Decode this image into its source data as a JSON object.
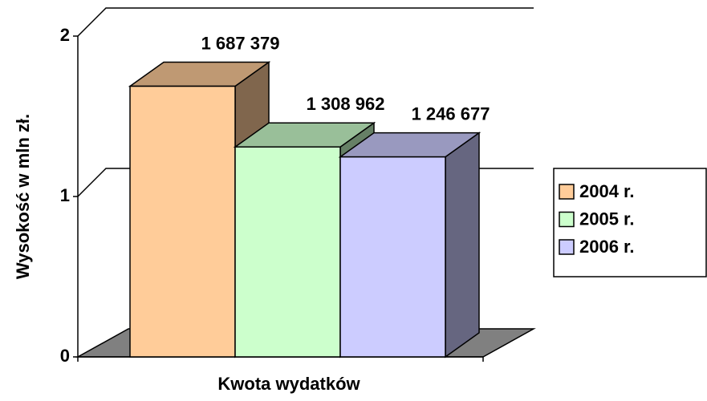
{
  "chart_data": {
    "type": "bar3d",
    "y_label": "Wysokość w mln zł.",
    "x_label": "Kwota wydatków",
    "categories": [
      null
    ],
    "series": [
      {
        "name": "2004 r.",
        "color": "#ffcc99",
        "values": [
          1.687379
        ],
        "value_labels": [
          "1 687 379"
        ]
      },
      {
        "name": "2005 r.",
        "color": "#ccffcc",
        "values": [
          1.308962
        ],
        "value_labels": [
          "1 308 962"
        ]
      },
      {
        "name": "2006 r.",
        "color": "#ccccff",
        "values": [
          1.246677
        ],
        "value_labels": [
          "1 246 677"
        ]
      }
    ],
    "ylim": [
      0,
      2
    ],
    "yticks": [
      0,
      1,
      2
    ],
    "grid": true,
    "legend": "right"
  }
}
